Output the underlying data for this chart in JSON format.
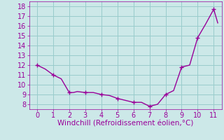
{
  "x": [
    0,
    0.5,
    1,
    1.5,
    2,
    2.25,
    2.5,
    3,
    3.5,
    4,
    4.5,
    5,
    5.5,
    6,
    6.5,
    7,
    7.5,
    8,
    8.5,
    9,
    9.5,
    10,
    10.5,
    11,
    11.25
  ],
  "y": [
    12.0,
    11.6,
    11.0,
    10.6,
    9.2,
    9.2,
    9.3,
    9.2,
    9.2,
    9.0,
    8.9,
    8.6,
    8.4,
    8.2,
    8.2,
    7.8,
    8.0,
    9.0,
    9.4,
    11.8,
    12.0,
    14.8,
    16.2,
    17.7,
    16.3
  ],
  "marker_x": [
    0,
    1,
    2,
    3,
    4,
    5,
    6,
    7,
    8,
    9,
    10,
    11
  ],
  "marker_y": [
    12.0,
    11.0,
    9.2,
    9.2,
    9.0,
    8.6,
    8.2,
    7.8,
    9.0,
    11.8,
    14.8,
    17.7
  ],
  "line_color": "#990099",
  "marker_color": "#990099",
  "bg_color": "#cce8e8",
  "grid_color": "#99cccc",
  "xlabel": "Windchill (Refroidissement éolien,°C)",
  "xlim": [
    -0.5,
    11.5
  ],
  "ylim": [
    7.5,
    18.5
  ],
  "xticks": [
    0,
    1,
    2,
    3,
    4,
    5,
    6,
    7,
    8,
    9,
    10,
    11
  ],
  "yticks": [
    8,
    9,
    10,
    11,
    12,
    13,
    14,
    15,
    16,
    17,
    18
  ],
  "xlabel_color": "#990099",
  "tick_color": "#990099",
  "label_fontsize": 7.5,
  "tick_fontsize": 7,
  "line_width": 1.0,
  "marker_size": 4.0
}
